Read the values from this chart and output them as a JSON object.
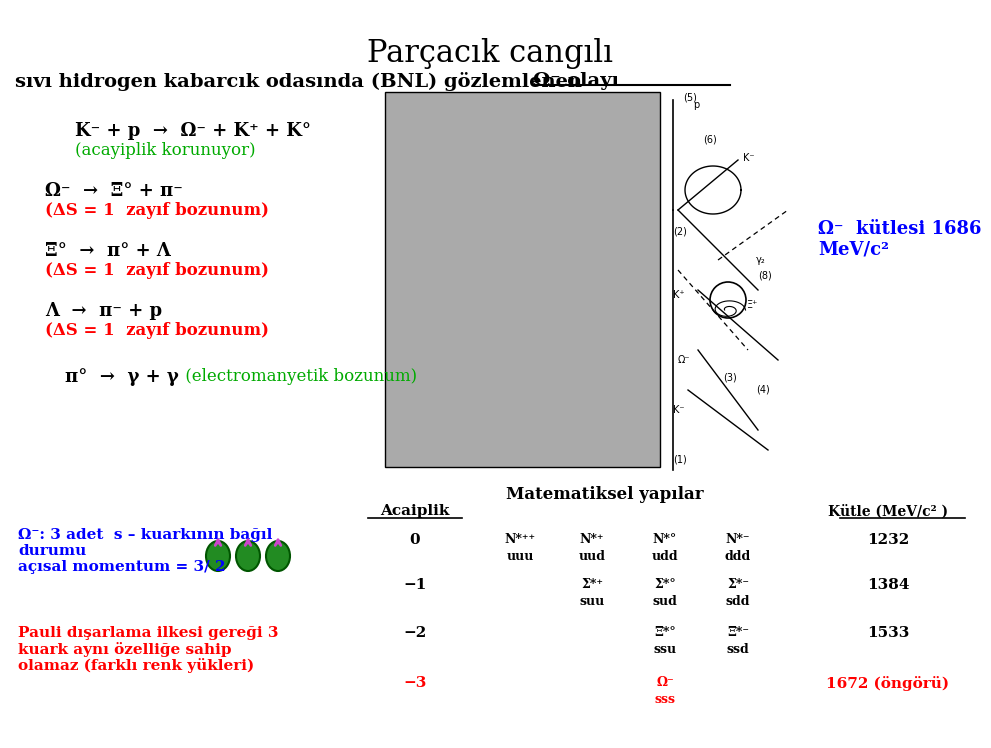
{
  "title": "Parçacık cangılı",
  "subtitle": "sıvı hidrogen kabarcık odasında (BNL) gözlemlenen",
  "subtitle_omega": "Ω⁻ olayı",
  "bg_color": "#ffffff",
  "line1_black": "K⁻ + p  →  Ω⁻ + K⁺ + K°",
  "line1_green": "(acayiplik korunuyor)",
  "line2_black": "Ω⁻  →  Ξ° + π⁻",
  "line2_red": "(ΔS = 1  zayıf bozunum)",
  "line3_black": "Ξ°  →  π° + Λ",
  "line3_red": "(ΔS = 1  zayıf bozunum)",
  "line4_black": "Λ  →  π⁻ + p",
  "line4_red": "(ΔS = 1  zayıf bozunum)",
  "line5_black": "π°  →  γ + γ",
  "line5_green": " (electromanyetik bozunum)",
  "omega_label_line1": "Ω⁻  kütlesi 1686",
  "omega_label_line2": "MeV/c²",
  "table_title": "Matematiksel yapılar",
  "col_header1": "Acaiplik",
  "col_header2": "Kütle (MeV/c² )",
  "left_text1": "Ω⁻: 3 adet  s – kuarkının bağıl",
  "left_text2": "durumu",
  "left_text3": "açısal momentum = 3/ 2",
  "left_text4": "Pauli dışarlama ilkesi gereği 3",
  "left_text5": "kuark aynı özelliğe sahip",
  "left_text6": "olamaz (farklı renk yükleri)"
}
